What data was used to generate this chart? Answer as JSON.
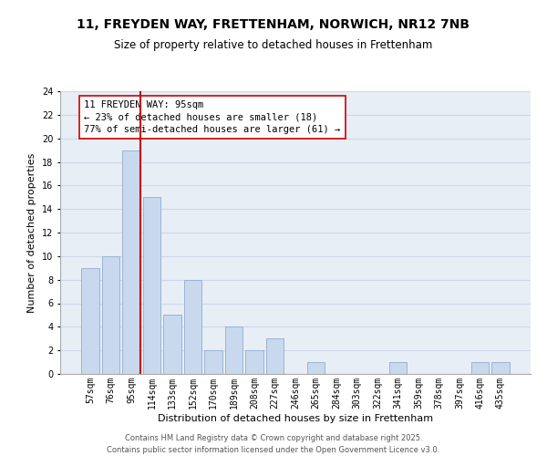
{
  "title": "11, FREYDEN WAY, FRETTENHAM, NORWICH, NR12 7NB",
  "subtitle": "Size of property relative to detached houses in Frettenham",
  "xlabel": "Distribution of detached houses by size in Frettenham",
  "ylabel": "Number of detached properties",
  "categories": [
    "57sqm",
    "76sqm",
    "95sqm",
    "114sqm",
    "133sqm",
    "152sqm",
    "170sqm",
    "189sqm",
    "208sqm",
    "227sqm",
    "246sqm",
    "265sqm",
    "284sqm",
    "303sqm",
    "322sqm",
    "341sqm",
    "359sqm",
    "378sqm",
    "397sqm",
    "416sqm",
    "435sqm"
  ],
  "values": [
    9,
    10,
    19,
    15,
    5,
    8,
    2,
    4,
    2,
    3,
    0,
    1,
    0,
    0,
    0,
    1,
    0,
    0,
    0,
    1,
    1
  ],
  "bar_color": "#c8d9ee",
  "bar_edge_color": "#9ab4d4",
  "highlight_index": 2,
  "highlight_line_color": "#cc0000",
  "annotation_line1": "11 FREYDEN WAY: 95sqm",
  "annotation_line2": "← 23% of detached houses are smaller (18)",
  "annotation_line3": "77% of semi-detached houses are larger (61) →",
  "ylim": [
    0,
    24
  ],
  "yticks": [
    0,
    2,
    4,
    6,
    8,
    10,
    12,
    14,
    16,
    18,
    20,
    22,
    24
  ],
  "grid_color": "#cdd8e8",
  "bg_color": "#e8eef6",
  "footer_line1": "Contains HM Land Registry data © Crown copyright and database right 2025.",
  "footer_line2": "Contains public sector information licensed under the Open Government Licence v3.0.",
  "title_fontsize": 10,
  "subtitle_fontsize": 8.5,
  "axis_label_fontsize": 8,
  "tick_fontsize": 7,
  "annotation_fontsize": 7.5,
  "footer_fontsize": 6
}
